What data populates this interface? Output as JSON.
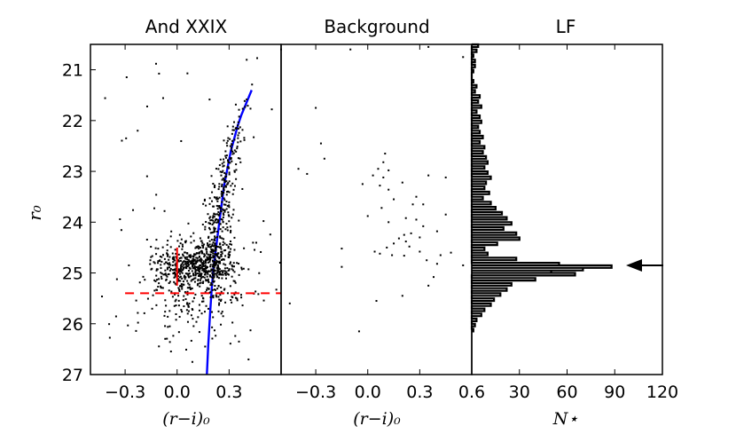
{
  "chart_data": [
    {
      "type": "scatter",
      "title": "And XXIX",
      "xlabel": "(r−i)₀",
      "ylabel": "r₀",
      "xlim": [
        -0.5,
        0.6
      ],
      "ylim": [
        27,
        20.5
      ],
      "x_ticks": [
        "−0.3",
        "0.0",
        "0.3"
      ],
      "x_tick_values": [
        -0.3,
        0.0,
        0.3
      ],
      "y_ticks": [
        "21",
        "22",
        "23",
        "24",
        "25",
        "26",
        "27"
      ],
      "y_tick_values": [
        21,
        22,
        23,
        24,
        25,
        26,
        27
      ],
      "isochrone": {
        "color": "#0000ff",
        "x": [
          0.172,
          0.18,
          0.19,
          0.2,
          0.21,
          0.225,
          0.24,
          0.255,
          0.27,
          0.29,
          0.31,
          0.33,
          0.35,
          0.37,
          0.4,
          0.43
        ],
        "y": [
          27.0,
          26.4,
          25.8,
          25.3,
          24.9,
          24.5,
          24.1,
          23.7,
          23.3,
          22.95,
          22.6,
          22.35,
          22.1,
          21.9,
          21.65,
          21.4
        ]
      },
      "trgb_marker": {
        "color": "#ff0000",
        "x": 0.0,
        "y_range": [
          24.5,
          25.25
        ]
      },
      "completeness_line": {
        "color": "#ff0000",
        "y": 25.4,
        "x_range": [
          -0.3,
          0.6
        ]
      },
      "scatter_seed": 29
    },
    {
      "type": "scatter",
      "title": "Background",
      "xlabel": "(r−i)₀",
      "xlim": [
        -0.5,
        0.6
      ],
      "ylim": [
        27,
        20.5
      ],
      "x_ticks": [
        "−0.3",
        "0.0",
        "0.3",
        "0.6"
      ],
      "x_tick_values": [
        -0.3,
        0.0,
        0.3,
        0.6
      ],
      "points": [
        [
          0.35,
          20.55
        ],
        [
          -0.1,
          20.6
        ],
        [
          -0.5,
          20.6
        ],
        [
          0.55,
          20.75
        ],
        [
          -0.3,
          21.75
        ],
        [
          -0.27,
          22.45
        ],
        [
          -0.25,
          22.75
        ],
        [
          -0.35,
          23.05
        ],
        [
          -0.4,
          22.95
        ],
        [
          0.1,
          22.65
        ],
        [
          0.09,
          22.82
        ],
        [
          0.06,
          22.95
        ],
        [
          0.12,
          22.98
        ],
        [
          0.03,
          23.08
        ],
        [
          0.09,
          23.12
        ],
        [
          -0.03,
          23.25
        ],
        [
          0.07,
          23.28
        ],
        [
          0.12,
          23.36
        ],
        [
          0.2,
          23.22
        ],
        [
          0.35,
          23.08
        ],
        [
          0.45,
          23.12
        ],
        [
          0.28,
          23.5
        ],
        [
          0.32,
          23.65
        ],
        [
          0.15,
          23.55
        ],
        [
          0.08,
          23.72
        ],
        [
          0.26,
          23.65
        ],
        [
          0.0,
          23.88
        ],
        [
          0.22,
          23.92
        ],
        [
          0.12,
          24.0
        ],
        [
          0.28,
          23.95
        ],
        [
          0.32,
          24.08
        ],
        [
          0.45,
          23.85
        ],
        [
          0.4,
          24.18
        ],
        [
          0.25,
          24.22
        ],
        [
          0.21,
          24.25
        ],
        [
          0.18,
          24.32
        ],
        [
          0.3,
          24.3
        ],
        [
          0.22,
          24.38
        ],
        [
          0.15,
          24.42
        ],
        [
          0.11,
          24.5
        ],
        [
          0.24,
          24.48
        ],
        [
          0.04,
          24.58
        ],
        [
          0.07,
          24.62
        ],
        [
          0.14,
          24.65
        ],
        [
          0.3,
          24.58
        ],
        [
          0.21,
          24.66
        ],
        [
          -0.15,
          24.52
        ],
        [
          0.34,
          24.75
        ],
        [
          0.42,
          24.65
        ],
        [
          0.48,
          24.6
        ],
        [
          0.4,
          24.82
        ],
        [
          -0.15,
          24.88
        ],
        [
          0.55,
          24.85
        ],
        [
          0.38,
          25.08
        ],
        [
          0.35,
          25.25
        ],
        [
          0.2,
          25.45
        ],
        [
          0.05,
          25.55
        ],
        [
          -0.05,
          26.15
        ],
        [
          -0.45,
          25.6
        ]
      ]
    },
    {
      "type": "histogram",
      "title": "LF",
      "xlabel": "N⋆",
      "xlim": [
        0,
        120
      ],
      "ylim": [
        27,
        20.5
      ],
      "x_ticks": [
        "0",
        "30",
        "60",
        "90",
        "120"
      ],
      "x_tick_values": [
        0,
        30,
        60,
        90,
        120
      ],
      "bin_width": 0.05,
      "bins": [
        [
          20.5,
          4
        ],
        [
          20.6,
          3
        ],
        [
          20.7,
          1
        ],
        [
          20.8,
          2
        ],
        [
          20.9,
          2
        ],
        [
          21.0,
          1
        ],
        [
          21.2,
          1
        ],
        [
          21.3,
          3
        ],
        [
          21.4,
          2
        ],
        [
          21.5,
          5
        ],
        [
          21.6,
          4
        ],
        [
          21.7,
          6
        ],
        [
          21.8,
          3
        ],
        [
          21.9,
          5
        ],
        [
          22.0,
          6
        ],
        [
          22.1,
          4
        ],
        [
          22.2,
          5
        ],
        [
          22.3,
          7
        ],
        [
          22.4,
          5
        ],
        [
          22.5,
          8
        ],
        [
          22.6,
          7
        ],
        [
          22.7,
          9
        ],
        [
          22.8,
          10
        ],
        [
          22.9,
          8
        ],
        [
          23.0,
          10
        ],
        [
          23.1,
          12
        ],
        [
          23.2,
          9
        ],
        [
          23.3,
          8
        ],
        [
          23.4,
          11
        ],
        [
          23.5,
          7
        ],
        [
          23.6,
          12
        ],
        [
          23.7,
          15
        ],
        [
          23.8,
          19
        ],
        [
          23.9,
          22
        ],
        [
          24.0,
          25
        ],
        [
          24.1,
          20
        ],
        [
          24.2,
          28
        ],
        [
          24.3,
          30
        ],
        [
          24.4,
          16
        ],
        [
          24.5,
          8
        ],
        [
          24.6,
          10
        ],
        [
          24.7,
          28
        ],
        [
          24.8,
          55
        ],
        [
          24.85,
          88
        ],
        [
          24.9,
          70
        ],
        [
          24.95,
          50
        ],
        [
          25.0,
          65
        ],
        [
          25.1,
          40
        ],
        [
          25.2,
          25
        ],
        [
          25.3,
          22
        ],
        [
          25.4,
          18
        ],
        [
          25.5,
          14
        ],
        [
          25.6,
          12
        ],
        [
          25.7,
          8
        ],
        [
          25.8,
          6
        ],
        [
          25.9,
          3
        ],
        [
          26.0,
          2
        ],
        [
          26.1,
          1
        ]
      ],
      "trgb_arrow": {
        "y": 24.85
      }
    }
  ]
}
